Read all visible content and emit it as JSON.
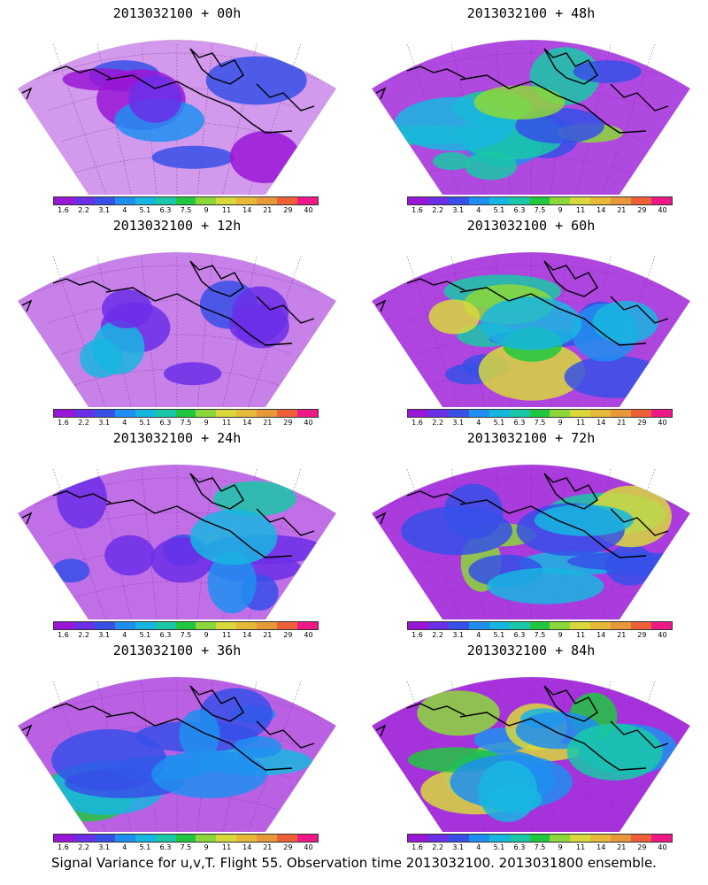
{
  "panels": [
    {
      "title": "2013032100 + 00h",
      "intensity": 0.15
    },
    {
      "title": "2013032100 + 48h",
      "intensity": 0.72
    },
    {
      "title": "2013032100 + 12h",
      "intensity": 0.32
    },
    {
      "title": "2013032100 + 60h",
      "intensity": 0.75
    },
    {
      "title": "2013032100 + 24h",
      "intensity": 0.45
    },
    {
      "title": "2013032100 + 72h",
      "intensity": 0.82
    },
    {
      "title": "2013032100 + 36h",
      "intensity": 0.55
    },
    {
      "title": "2013032100 + 84h",
      "intensity": 0.88
    }
  ],
  "colorbar": {
    "labels": [
      "1.6",
      "2.2",
      "3.1",
      "4",
      "5.1",
      "6.3",
      "7.5",
      "9",
      "11",
      "14",
      "21",
      "29",
      "40"
    ],
    "colors": [
      "#9a16d6",
      "#6b2fe8",
      "#3650e8",
      "#1e8ff0",
      "#17b6e0",
      "#19c8a8",
      "#20c840",
      "#8cd83a",
      "#d8d83c",
      "#e8b838",
      "#e89838",
      "#f06038",
      "#f01888"
    ]
  },
  "caption": "Signal Variance for u,v,T. Flight 55. Observation time 2013032100. 2013031800 ensemble."
}
